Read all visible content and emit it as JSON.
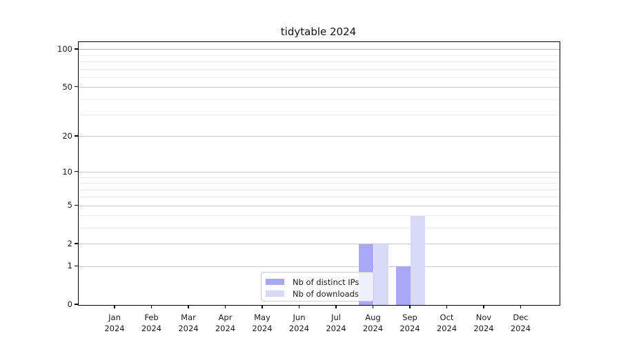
{
  "chart_data": {
    "type": "bar",
    "title": "tidytable 2024",
    "x": {
      "categories": [
        "Jan",
        "Feb",
        "Mar",
        "Apr",
        "May",
        "Jun",
        "Jul",
        "Aug",
        "Sep",
        "Oct",
        "Nov",
        "Dec"
      ],
      "year_label": "2024"
    },
    "series": [
      {
        "name": "Nb of distinct IPs",
        "color": "#a8a8f6",
        "values": [
          0,
          0,
          0,
          0,
          0,
          0,
          0,
          2,
          1,
          0,
          0,
          0
        ]
      },
      {
        "name": "Nb of downloads",
        "color": "#d9d9fa",
        "values": [
          0,
          0,
          0,
          0,
          0,
          0,
          0,
          2,
          4,
          0,
          0,
          0
        ]
      }
    ],
    "yscale": "log1p",
    "ylim": [
      0,
      113
    ],
    "y_ticks": [
      100,
      50,
      20,
      10,
      5,
      2,
      1,
      0
    ],
    "y_minor_gridlines": [
      90,
      80,
      70,
      60,
      40,
      30,
      9,
      8,
      7,
      6,
      4,
      3
    ],
    "grid": true,
    "legend_position": "lower center",
    "colors": {
      "spine": "#000000",
      "major_grid": "#c9c9c9",
      "top_grid": "#b0b0b0",
      "minor_grid": "#ededed",
      "text": "#1a1a1a"
    }
  }
}
